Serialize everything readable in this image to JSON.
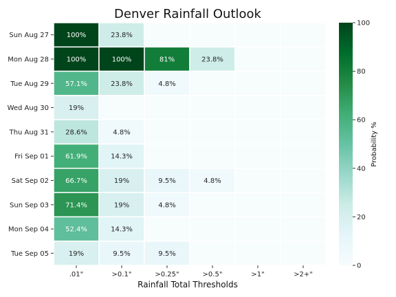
{
  "chart_data": {
    "type": "heatmap",
    "title": "Denver Rainfall Outlook",
    "xlabel": "Rainfall Total Thresholds",
    "ylabel": "",
    "x_categories": [
      ".01\"",
      ">0.1\"",
      ">0.25\"",
      ">0.5\"",
      ">1\"",
      ">2+\""
    ],
    "y_categories": [
      "Sun Aug 27",
      "Mon Aug 28",
      "Tue Aug 29",
      "Wed Aug 30",
      "Thu Aug 31",
      "Fri Sep 01",
      "Sat Sep 02",
      "Sun Sep 03",
      "Mon Sep 04",
      "Tue Sep 05"
    ],
    "values": [
      [
        100,
        23.8,
        0,
        0,
        0,
        0
      ],
      [
        100,
        100,
        81,
        23.8,
        0,
        0
      ],
      [
        57.1,
        23.8,
        4.8,
        0,
        0,
        0
      ],
      [
        19,
        0,
        0,
        0,
        0,
        0
      ],
      [
        28.6,
        4.8,
        0,
        0,
        0,
        0
      ],
      [
        61.9,
        14.3,
        0,
        0,
        0,
        0
      ],
      [
        66.7,
        19,
        9.5,
        4.8,
        0,
        0
      ],
      [
        71.4,
        19,
        4.8,
        0,
        0,
        0
      ],
      [
        52.4,
        14.3,
        0,
        0,
        0,
        0
      ],
      [
        19,
        9.5,
        9.5,
        0,
        0,
        0
      ]
    ],
    "labels": [
      [
        "100%",
        "23.8%",
        "",
        "",
        "",
        ""
      ],
      [
        "100%",
        "100%",
        "81%",
        "23.8%",
        "",
        ""
      ],
      [
        "57.1%",
        "23.8%",
        "4.8%",
        "",
        "",
        ""
      ],
      [
        "19%",
        "",
        "",
        "",
        "",
        ""
      ],
      [
        "28.6%",
        "4.8%",
        "",
        "",
        "",
        ""
      ],
      [
        "61.9%",
        "14.3%",
        "",
        "",
        "",
        ""
      ],
      [
        "66.7%",
        "19%",
        "9.5%",
        "4.8%",
        "",
        ""
      ],
      [
        "71.4%",
        "19%",
        "4.8%",
        "",
        "",
        ""
      ],
      [
        "52.4%",
        "14.3%",
        "",
        "",
        "",
        ""
      ],
      [
        "19%",
        "9.5%",
        "9.5%",
        "",
        "",
        ""
      ]
    ],
    "colorbar": {
      "label": "Probability %",
      "range": [
        0,
        100
      ],
      "ticks": [
        "0",
        "20",
        "40",
        "60",
        "80",
        "100"
      ]
    },
    "colormap": "greens",
    "colors": {
      "low": "#f7fcfd",
      "mid": "#66c2a4",
      "high": "#00441b",
      "cell_border": "#ffffff"
    }
  }
}
